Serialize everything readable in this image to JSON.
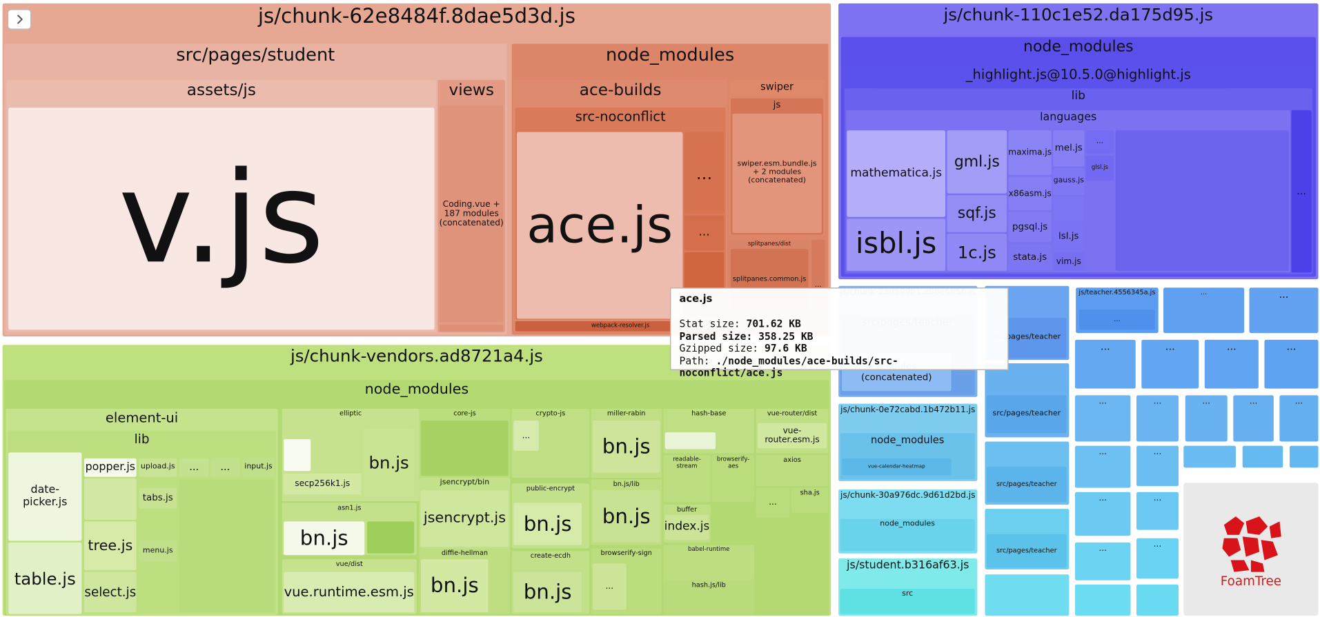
{
  "ellipsis": "...",
  "chunks": [
    {
      "title": "js/chunk-62e8484f.8dae5d3d.js",
      "items": [
        "src/pages/student",
        "assets/js",
        "v.js",
        "views",
        "Coding.vue + 187 modules (concatenated)",
        "node_modules",
        "ace-builds",
        "src-noconflict",
        "ace.js",
        "webpack-resolver.js",
        "swiper",
        "js",
        "swiper.esm.bundle.js + 2 modules (concatenated)",
        "splitpanes/dist",
        "splitpanes.common.js"
      ]
    },
    {
      "title": "js/chunk-110c1e52.da175d95.js",
      "items": [
        "node_modules",
        "_highlight.js@10.5.0@highlight.js",
        "lib",
        "languages",
        "mathematica.js",
        "isbl.js",
        "gml.js",
        "sqf.js",
        "1c.js",
        "maxima.js",
        "x86asm.js",
        "pgsql.js",
        "stata.js",
        "mel.js",
        "gauss.js",
        "lsl.js",
        "vim.js",
        "glsl.js"
      ]
    },
    {
      "title": "js/chunk-vendors.ad8721a4.js",
      "items": [
        "node_modules",
        "element-ui",
        "lib",
        "date-picker.js",
        "table.js",
        "popper.js",
        "tree.js",
        "select.js",
        "upload.js",
        "tabs.js",
        "menu.js",
        "input.js",
        "elliptic",
        "bn.js",
        "secp256k1.js",
        "asn1.js",
        "bn.js",
        "vue/dist",
        "vue.runtime.esm.js",
        "core-js",
        "jsencrypt/bin",
        "jsencrypt.js",
        "diffie-hellman",
        "bn.js",
        "crypto-js",
        "public-encrypt",
        "bn.js",
        "create-ecdh",
        "bn.js",
        "miller-rabin",
        "bn.js",
        "bn.js/lib",
        "bn.js",
        "browserify-sign",
        "hash-base",
        "readable-stream",
        "browserify-aes",
        "buffer",
        "index.js",
        "babel-runtime",
        "hash.js/lib",
        "vue-router/dist",
        "vue-router.esm.js",
        "axios",
        "sha.js"
      ]
    }
  ],
  "small_chunks": [
    {
      "title": "js/chunk-23d599b1.e98e6856.js",
      "items": [
        "src/pages/teacher",
        "modules (concatenated)"
      ]
    },
    {
      "title": "js/teacher.4556345a.js",
      "items": []
    },
    {
      "title": "js/chunk-0e72cabd.1b472b11.js",
      "items": [
        "node_modules",
        "vue-calendar-heatmap"
      ]
    },
    {
      "title": "js/chunk-30a976dc.9d61d2bd.js",
      "items": [
        "node_modules"
      ]
    },
    {
      "title": "js/student.b316af63.js",
      "items": [
        "src"
      ]
    },
    {
      "title": null,
      "items": [
        "src/pages/teacher",
        "src/pages/teacher",
        "src/pages/teacher",
        "src/pages/teacher"
      ]
    }
  ],
  "tooltip": {
    "title": "ace.js",
    "rows": [
      {
        "label": "Stat size:",
        "value": "701.62 KB"
      },
      {
        "label": "Parsed size:",
        "value": "358.25 KB"
      },
      {
        "label": "Gzipped size:",
        "value": "97.6 KB"
      },
      {
        "label": "Path:",
        "value": "./node_modules/ace-builds/src-noconflict/ace.js"
      }
    ]
  },
  "branding": "FoamTree"
}
